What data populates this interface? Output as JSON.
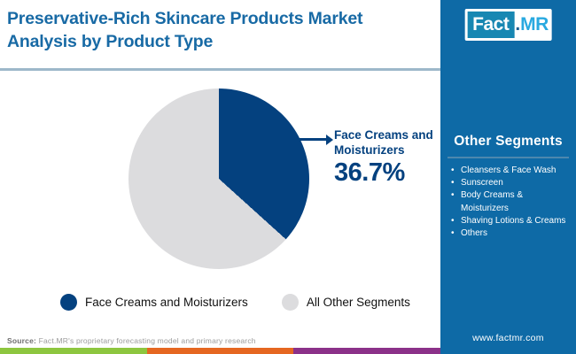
{
  "header": {
    "title_line1": "Preservative-Rich Skincare Products Market",
    "title_line2": "Analysis by Product Type"
  },
  "logo": {
    "fact": "Fact",
    "dot": ".",
    "mr": "MR"
  },
  "chart_data": {
    "type": "pie",
    "title": "Preservative-Rich Skincare Products Market Analysis by Product Type",
    "slices": [
      {
        "label": "Face Creams and Moisturizers",
        "value": 36.7,
        "color": "#04417f"
      },
      {
        "label": "All Other Segments",
        "value": 63.3,
        "color": "#dcdcde"
      }
    ],
    "start_angle": "top",
    "direction": "clockwise",
    "annotation": {
      "label": "Face Creams and Moisturizers",
      "value_label": "36.7%"
    },
    "legend_position": "bottom"
  },
  "callout": {
    "label": "Face Creams and Moisturizers",
    "value": "36.7%"
  },
  "legend": [
    {
      "label": "Face Creams and Moisturizers",
      "color": "#04417f"
    },
    {
      "label": "All Other Segments",
      "color": "#dcdcde"
    }
  ],
  "sidebar": {
    "heading": "Other Segments",
    "items": [
      "Cleansers & Face Wash",
      "Sunscreen",
      "Body Creams & Moisturizers",
      "Shaving Lotions & Creams",
      "Others"
    ],
    "website": "www.factmr.com"
  },
  "footer": {
    "source_label": "Source:",
    "source_text": "Fact.MR's proprietary forecasting model and primary research",
    "bar_colors": [
      "#8dc63f",
      "#e56721",
      "#8b3189"
    ]
  },
  "colors": {
    "title_blue": "#186aa5",
    "sidebar_bg": "#0e6aa6",
    "pie_primary": "#04417f",
    "pie_secondary": "#dcdcde",
    "header_divider": "#9db8ca",
    "logo_fact_bg": "#1787b2",
    "logo_mr_cyan": "#29a9e0"
  }
}
